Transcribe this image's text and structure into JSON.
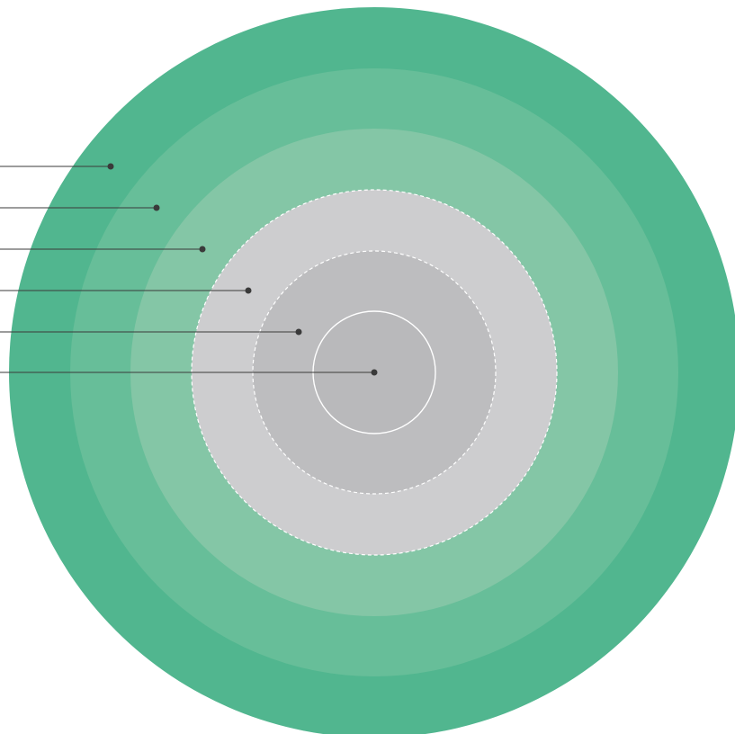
{
  "diagram": {
    "type": "concentric-rings",
    "rings": [
      {
        "id": "ring-1",
        "fill": "#51b68f",
        "border": "none"
      },
      {
        "id": "ring-2",
        "fill": "#67be99",
        "border": "none"
      },
      {
        "id": "ring-3",
        "fill": "#84c6a6",
        "border": "none"
      },
      {
        "id": "ring-4",
        "fill": "#cdcdcf",
        "border": "dashed",
        "border_color": "#ffffff"
      },
      {
        "id": "ring-5",
        "fill": "#bdbdbf",
        "border": "dashed",
        "border_color": "#ffffff"
      },
      {
        "id": "ring-6",
        "fill": "#b9b9bb",
        "border": "solid",
        "border_color": "#ffffff"
      }
    ],
    "callouts": [
      {
        "ring": "ring-1",
        "label": ""
      },
      {
        "ring": "ring-2",
        "label": ""
      },
      {
        "ring": "ring-3",
        "label": ""
      },
      {
        "ring": "ring-4",
        "label": ""
      },
      {
        "ring": "ring-5",
        "label": ""
      },
      {
        "ring": "ring-6",
        "label": ""
      }
    ],
    "colors": {
      "leader_line": "#3a3a3a",
      "leader_dot": "#3a3a3a"
    }
  }
}
